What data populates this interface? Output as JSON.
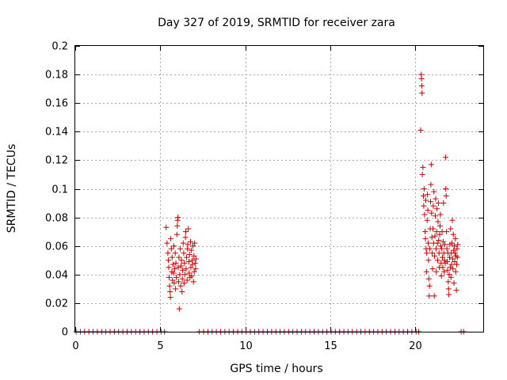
{
  "chart_data": {
    "type": "scatter",
    "title": "Day 327 of 2019, SRMTID for receiver zara",
    "xlabel": "GPS time / hours",
    "ylabel": "SRMTID / TECUs",
    "xlim": [
      0,
      24
    ],
    "ylim": [
      0,
      0.2
    ],
    "x_ticks": [
      0,
      5,
      10,
      15,
      20
    ],
    "x_tick_labels": [
      "0",
      "5",
      "10",
      "15",
      "20"
    ],
    "y_ticks": [
      0,
      0.02,
      0.04,
      0.06,
      0.08,
      0.1,
      0.12,
      0.14,
      0.16,
      0.18,
      0.2
    ],
    "y_tick_labels": [
      "0",
      "0.02",
      "0.04",
      "0.06",
      "0.08",
      "0.1",
      "0.12",
      "0.14",
      "0.16",
      "0.18",
      "0.2"
    ],
    "grid": true,
    "marker": "+",
    "marker_color": "#cc0000",
    "series": [
      {
        "name": "SRMTID",
        "points": [
          [
            0.05,
            0
          ],
          [
            0.3,
            0
          ],
          [
            0.55,
            0
          ],
          [
            0.8,
            0
          ],
          [
            1.05,
            0
          ],
          [
            1.3,
            0
          ],
          [
            1.55,
            0
          ],
          [
            1.8,
            0
          ],
          [
            2.05,
            0
          ],
          [
            2.3,
            0
          ],
          [
            2.55,
            0
          ],
          [
            2.8,
            0
          ],
          [
            3.05,
            0
          ],
          [
            3.3,
            0
          ],
          [
            3.55,
            0
          ],
          [
            3.8,
            0
          ],
          [
            4.05,
            0
          ],
          [
            4.3,
            0
          ],
          [
            4.55,
            0
          ],
          [
            4.8,
            0
          ],
          [
            5.05,
            0
          ],
          [
            5.25,
            0
          ],
          [
            5.35,
            0.073
          ],
          [
            5.4,
            0.062
          ],
          [
            5.45,
            0.055
          ],
          [
            5.48,
            0.05
          ],
          [
            5.5,
            0.045
          ],
          [
            5.52,
            0.038
          ],
          [
            5.55,
            0.032
          ],
          [
            5.58,
            0.028
          ],
          [
            5.6,
            0.024
          ],
          [
            5.62,
            0.065
          ],
          [
            5.65,
            0.058
          ],
          [
            5.68,
            0.042
          ],
          [
            5.7,
            0.052
          ],
          [
            5.72,
            0.036
          ],
          [
            5.75,
            0.047
          ],
          [
            5.78,
            0.041
          ],
          [
            5.8,
            0.06
          ],
          [
            5.82,
            0.034
          ],
          [
            5.85,
            0.044
          ],
          [
            5.88,
            0.055
          ],
          [
            5.9,
            0.03
          ],
          [
            5.92,
            0.048
          ],
          [
            5.95,
            0.038
          ],
          [
            5.98,
            0.068
          ],
          [
            6.0,
            0.074
          ],
          [
            6.02,
            0.078
          ],
          [
            6.04,
            0.08
          ],
          [
            6.06,
            0.045
          ],
          [
            6.08,
            0.035
          ],
          [
            6.1,
            0.052
          ],
          [
            6.12,
            0.016
          ],
          [
            6.15,
            0.04
          ],
          [
            6.18,
            0.058
          ],
          [
            6.2,
            0.032
          ],
          [
            6.22,
            0.046
          ],
          [
            6.25,
            0.05
          ],
          [
            6.28,
            0.028
          ],
          [
            6.3,
            0.037
          ],
          [
            6.32,
            0.043
          ],
          [
            6.35,
            0.062
          ],
          [
            6.38,
            0.055
          ],
          [
            6.4,
            0.034
          ],
          [
            6.42,
            0.048
          ],
          [
            6.45,
            0.04
          ],
          [
            6.48,
            0.066
          ],
          [
            6.5,
            0.07
          ],
          [
            6.52,
            0.044
          ],
          [
            6.55,
            0.052
          ],
          [
            6.58,
            0.036
          ],
          [
            6.6,
            0.058
          ],
          [
            6.62,
            0.061
          ],
          [
            6.65,
            0.072
          ],
          [
            6.68,
            0.049
          ],
          [
            6.7,
            0.041
          ],
          [
            6.72,
            0.054
          ],
          [
            6.75,
            0.038
          ],
          [
            6.78,
            0.063
          ],
          [
            6.8,
            0.045
          ],
          [
            6.82,
            0.057
          ],
          [
            6.85,
            0.039
          ],
          [
            6.88,
            0.05
          ],
          [
            6.9,
            0.047
          ],
          [
            6.92,
            0.06
          ],
          [
            6.95,
            0.035
          ],
          [
            6.98,
            0.053
          ],
          [
            7.0,
            0.042
          ],
          [
            7.02,
            0.062
          ],
          [
            7.05,
            0.048
          ],
          [
            7.08,
            0.044
          ],
          [
            7.1,
            0.051
          ],
          [
            7.3,
            0
          ],
          [
            7.55,
            0
          ],
          [
            7.8,
            0
          ],
          [
            8.05,
            0
          ],
          [
            8.3,
            0
          ],
          [
            8.55,
            0
          ],
          [
            8.8,
            0
          ],
          [
            9.05,
            0
          ],
          [
            9.3,
            0
          ],
          [
            9.55,
            0
          ],
          [
            9.8,
            0
          ],
          [
            10.05,
            0
          ],
          [
            10.3,
            0
          ],
          [
            10.55,
            0
          ],
          [
            10.8,
            0
          ],
          [
            11.05,
            0
          ],
          [
            11.3,
            0
          ],
          [
            11.55,
            0
          ],
          [
            11.8,
            0
          ],
          [
            12.05,
            0
          ],
          [
            12.3,
            0
          ],
          [
            12.55,
            0
          ],
          [
            12.8,
            0
          ],
          [
            13.05,
            0
          ],
          [
            13.3,
            0
          ],
          [
            13.55,
            0
          ],
          [
            13.8,
            0
          ],
          [
            14.05,
            0
          ],
          [
            14.3,
            0
          ],
          [
            14.55,
            0
          ],
          [
            14.8,
            0
          ],
          [
            15.05,
            0
          ],
          [
            15.3,
            0
          ],
          [
            15.55,
            0
          ],
          [
            15.8,
            0
          ],
          [
            16.05,
            0
          ],
          [
            16.3,
            0
          ],
          [
            16.55,
            0
          ],
          [
            16.8,
            0
          ],
          [
            17.05,
            0
          ],
          [
            17.3,
            0
          ],
          [
            17.55,
            0
          ],
          [
            17.8,
            0
          ],
          [
            18.05,
            0
          ],
          [
            18.3,
            0
          ],
          [
            18.55,
            0
          ],
          [
            18.8,
            0
          ],
          [
            19.05,
            0
          ],
          [
            19.3,
            0
          ],
          [
            19.55,
            0
          ],
          [
            19.8,
            0
          ],
          [
            20.05,
            0
          ],
          [
            20.2,
            0
          ],
          [
            20.35,
            0.18
          ],
          [
            20.37,
            0.177
          ],
          [
            20.38,
            0.172
          ],
          [
            20.4,
            0.167
          ],
          [
            20.32,
            0.141
          ],
          [
            20.45,
            0.115
          ],
          [
            20.42,
            0.11
          ],
          [
            20.48,
            0.095
          ],
          [
            20.5,
            0.088
          ],
          [
            20.52,
            0.1
          ],
          [
            20.55,
            0.082
          ],
          [
            20.58,
            0.07
          ],
          [
            20.6,
            0.065
          ],
          [
            20.62,
            0.092
          ],
          [
            20.64,
            0.058
          ],
          [
            20.66,
            0.042
          ],
          [
            20.68,
            0.055
          ],
          [
            20.7,
            0.078
          ],
          [
            20.72,
            0.096
          ],
          [
            20.74,
            0.085
          ],
          [
            20.76,
            0.062
          ],
          [
            20.78,
            0.05
          ],
          [
            20.8,
            0.037
          ],
          [
            20.82,
            0.025
          ],
          [
            20.84,
            0.032
          ],
          [
            20.86,
            0.058
          ],
          [
            20.88,
            0.072
          ],
          [
            20.9,
            0.091
          ],
          [
            20.92,
            0.103
          ],
          [
            20.94,
            0.117
          ],
          [
            20.96,
            0.083
          ],
          [
            20.98,
            0.066
          ],
          [
            21.0,
            0.055
          ],
          [
            21.02,
            0.044
          ],
          [
            21.04,
            0.072
          ],
          [
            21.06,
            0.088
          ],
          [
            21.08,
            0.062
          ],
          [
            21.1,
            0.098
          ],
          [
            21.12,
            0.025
          ],
          [
            21.14,
            0.053
          ],
          [
            21.16,
            0.067
          ],
          [
            21.18,
            0.081
          ],
          [
            21.2,
            0.093
          ],
          [
            21.22,
            0.058
          ],
          [
            21.24,
            0.042
          ],
          [
            21.26,
            0.07
          ],
          [
            21.28,
            0.086
          ],
          [
            21.3,
            0.062
          ],
          [
            21.32,
            0.05
          ],
          [
            21.34,
            0.077
          ],
          [
            21.36,
            0.09
          ],
          [
            21.38,
            0.064
          ],
          [
            21.4,
            0.055
          ],
          [
            21.42,
            0.045
          ],
          [
            21.44,
            0.068
          ],
          [
            21.46,
            0.074
          ],
          [
            21.48,
            0.082
          ],
          [
            21.5,
            0.06
          ],
          [
            21.52,
            0.048
          ],
          [
            21.54,
            0.039
          ],
          [
            21.56,
            0.058
          ],
          [
            21.58,
            0.07
          ],
          [
            21.6,
            0.052
          ],
          [
            21.62,
            0.045
          ],
          [
            21.64,
            0.063
          ],
          [
            21.66,
            0.09
          ],
          [
            21.68,
            0.055
          ],
          [
            21.7,
            0.042
          ],
          [
            21.72,
            0.05
          ],
          [
            21.74,
            0.061
          ],
          [
            21.76,
            0.048
          ],
          [
            21.78,
            0.122
          ],
          [
            21.8,
            0.1
          ],
          [
            21.82,
            0.095
          ],
          [
            21.84,
            0.07
          ],
          [
            21.86,
            0.058
          ],
          [
            21.88,
            0.049
          ],
          [
            21.9,
            0.043
          ],
          [
            21.92,
            0.055
          ],
          [
            21.94,
            0.035
          ],
          [
            21.96,
            0.03
          ],
          [
            21.98,
            0.026
          ],
          [
            22.0,
            0.04
          ],
          [
            22.02,
            0.052
          ],
          [
            22.04,
            0.061
          ],
          [
            22.06,
            0.045
          ],
          [
            22.08,
            0.072
          ],
          [
            22.1,
            0.038
          ],
          [
            22.12,
            0.055
          ],
          [
            22.14,
            0.047
          ],
          [
            22.16,
            0.062
          ],
          [
            22.18,
            0.078
          ],
          [
            22.2,
            0.051
          ],
          [
            22.22,
            0.044
          ],
          [
            22.24,
            0.068
          ],
          [
            22.26,
            0.057
          ],
          [
            22.28,
            0.034
          ],
          [
            22.3,
            0.06
          ],
          [
            22.32,
            0.049
          ],
          [
            22.34,
            0.055
          ],
          [
            22.36,
            0.065
          ],
          [
            22.38,
            0.042
          ],
          [
            22.4,
            0.053
          ],
          [
            22.42,
            0.029
          ],
          [
            22.44,
            0.047
          ],
          [
            22.46,
            0.058
          ],
          [
            22.48,
            0.052
          ],
          [
            22.5,
            0.061
          ],
          [
            22.7,
            0
          ],
          [
            22.85,
            0
          ]
        ]
      }
    ]
  }
}
